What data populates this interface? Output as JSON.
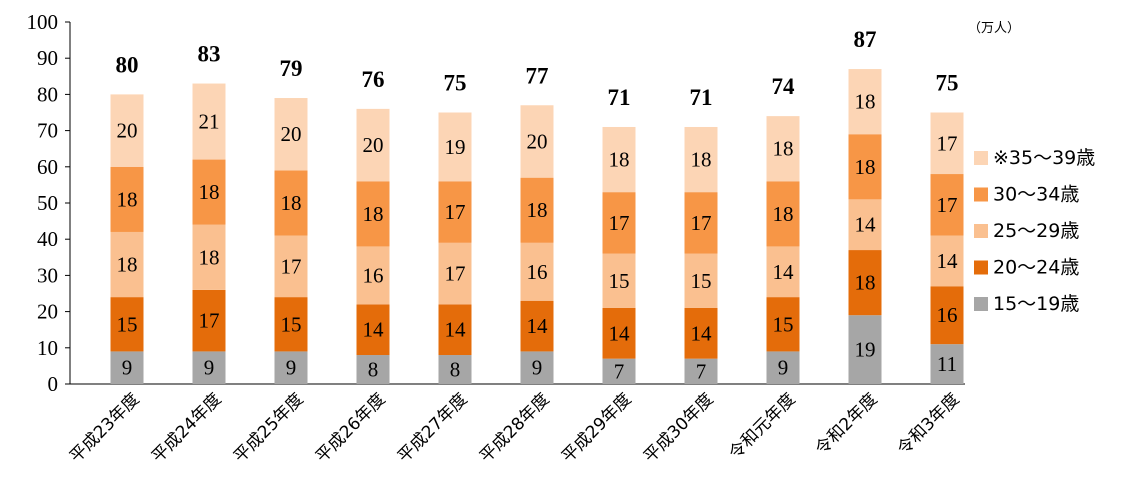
{
  "chart_data": {
    "type": "bar",
    "stacked": true,
    "unit": "（万人）",
    "categories": [
      "平成23年度",
      "平成24年度",
      "平成25年度",
      "平成26年度",
      "平成27年度",
      "平成28年度",
      "平成29年度",
      "平成30年度",
      "令和元年度",
      "令和2年度",
      "令和3年度"
    ],
    "ylim": [
      0,
      100
    ],
    "yticks": [
      0,
      10,
      20,
      30,
      40,
      50,
      60,
      70,
      80,
      90,
      100
    ],
    "series": [
      {
        "name": "15～19歳",
        "color": "#a6a6a6",
        "values": [
          9,
          9,
          9,
          8,
          8,
          9,
          7,
          7,
          9,
          19,
          11
        ]
      },
      {
        "name": "20～24歳",
        "color": "#e46c0a",
        "values": [
          15,
          17,
          15,
          14,
          14,
          14,
          14,
          14,
          15,
          18,
          16
        ]
      },
      {
        "name": "25～29歳",
        "color": "#fac090",
        "values": [
          18,
          18,
          17,
          16,
          17,
          16,
          15,
          15,
          14,
          14,
          14
        ]
      },
      {
        "name": "30～34歳",
        "color": "#f79646",
        "values": [
          18,
          18,
          18,
          18,
          17,
          18,
          17,
          17,
          18,
          18,
          17
        ]
      },
      {
        "name": "※35～39歳",
        "color": "#fcd5b5",
        "values": [
          20,
          21,
          20,
          20,
          19,
          20,
          18,
          18,
          18,
          18,
          17
        ]
      }
    ],
    "totals": [
      80,
      83,
      79,
      76,
      75,
      77,
      71,
      71,
      74,
      87,
      75
    ],
    "legend_position": "right",
    "grid": false
  }
}
